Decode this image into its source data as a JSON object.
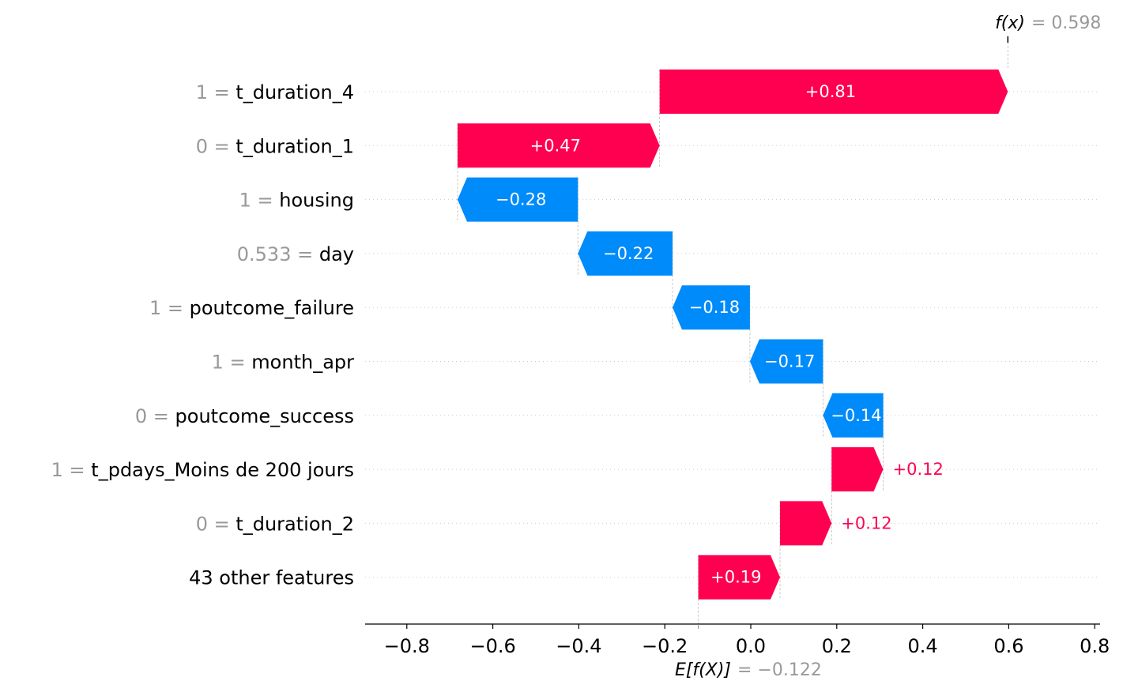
{
  "chart_data": {
    "type": "waterfall",
    "base_value": -0.122,
    "output_value": 0.598,
    "fx_label": "f(x)",
    "fx_value_text": "= 0.598",
    "ex_label": "E[f(X)]",
    "ex_value_text": "= −0.122",
    "xlim": [
      -0.9,
      0.82
    ],
    "x_ticks": [
      -0.8,
      -0.6,
      -0.4,
      -0.2,
      0.0,
      0.2,
      0.4,
      0.6,
      0.8
    ],
    "x_tick_labels": [
      "−0.8",
      "−0.6",
      "−0.4",
      "−0.2",
      "0.0",
      "0.2",
      "0.4",
      "0.6",
      "0.8"
    ],
    "rows": [
      {
        "value": "1",
        "feature": "t_duration_4",
        "contribution": 0.81,
        "label": "+0.81"
      },
      {
        "value": "0",
        "feature": "t_duration_1",
        "contribution": 0.47,
        "label": "+0.47"
      },
      {
        "value": "1",
        "feature": "housing",
        "contribution": -0.28,
        "label": "−0.28"
      },
      {
        "value": "0.533",
        "feature": "day",
        "contribution": -0.22,
        "label": "−0.22"
      },
      {
        "value": "1",
        "feature": "poutcome_failure",
        "contribution": -0.18,
        "label": "−0.18"
      },
      {
        "value": "1",
        "feature": "month_apr",
        "contribution": -0.17,
        "label": "−0.17"
      },
      {
        "value": "0",
        "feature": "poutcome_success",
        "contribution": -0.14,
        "label": "−0.14"
      },
      {
        "value": "1",
        "feature": "t_pdays_Moins de 200 jours",
        "contribution": 0.12,
        "label": "+0.12"
      },
      {
        "value": "0",
        "feature": "t_duration_2",
        "contribution": 0.12,
        "label": "+0.12"
      },
      {
        "value": "",
        "feature": "43 other features",
        "contribution": 0.19,
        "label": "+0.19"
      }
    ],
    "colors": {
      "positive": "#ff0051",
      "negative": "#008bfb",
      "value_text": "#999999",
      "grid": "#cccccc"
    }
  }
}
